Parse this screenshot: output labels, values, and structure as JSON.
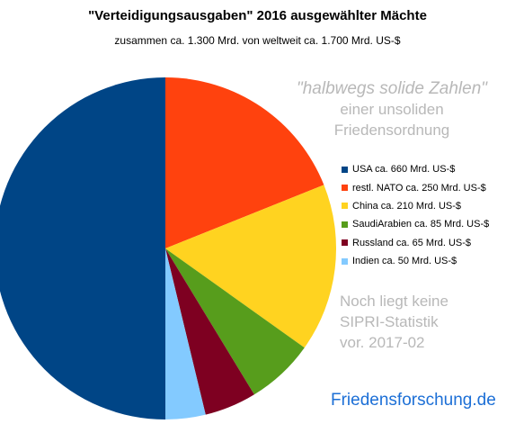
{
  "chart_data": {
    "type": "pie",
    "title": "\"Verteidigungsausgaben\" 2016 ausgewählter Mächte",
    "subtitle": "zusammen ca. 1.300 Mrd. von weltweit ca. 1.700 Mrd. US-$",
    "unit": "Mrd. US-$",
    "slices": [
      {
        "label": "USA ca. 660 Mrd. US-$",
        "value": 660,
        "color": "#004586"
      },
      {
        "label": "restl. NATO ca. 250 Mrd. US-$",
        "value": 250,
        "color": "#ff420e"
      },
      {
        "label": "China ca. 210 Mrd. US-$",
        "value": 210,
        "color": "#ffd320"
      },
      {
        "label": "SaudiArabien ca. 85 Mrd. US-$",
        "value": 85,
        "color": "#579d1c"
      },
      {
        "label": "Russland ca. 65 Mrd. US-$",
        "value": 65,
        "color": "#7e0021"
      },
      {
        "label": "Indien ca. 50 Mrd. US-$",
        "value": 50,
        "color": "#83caff"
      }
    ],
    "legend_position": "right",
    "annotations": {
      "note_quote": "\"halbwegs solide Zahlen\"",
      "note_line2": "einer unsoliden",
      "note_line3": "Friedensordnung",
      "sipri_line1": "Noch liegt keine",
      "sipri_line2": "SIPRI-Statistik",
      "sipri_line3": "vor. 2017-02"
    }
  },
  "brand": "Friedensforschung.de"
}
